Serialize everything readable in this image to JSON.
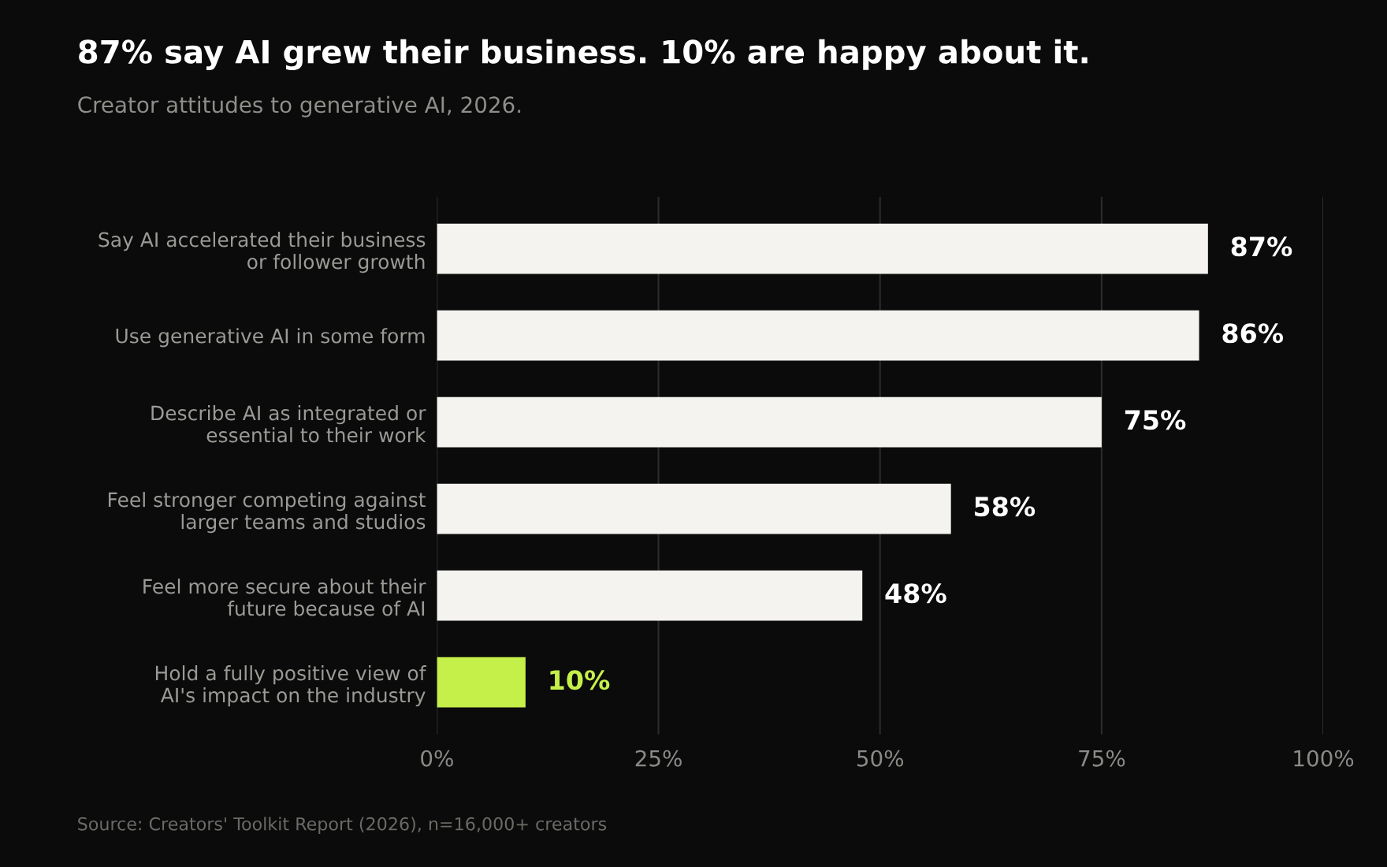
{
  "chart_data": {
    "type": "bar",
    "orientation": "horizontal",
    "title": "87% say AI grew their business. 10% are happy about it.",
    "subtitle": "Creator attitudes to generative AI, 2026.",
    "categories": [
      "Say AI accelerated their business\nor follower growth",
      "Use generative AI in some form",
      "Describe AI as integrated or\nessential to their work",
      "Feel stronger competing against\nlarger teams and studios",
      "Feel more secure about their\nfuture because of AI",
      "Hold a fully positive view of\nAI's impact on the industry"
    ],
    "values": [
      87,
      86,
      75,
      58,
      48,
      10
    ],
    "colors": [
      "#f4f3ef",
      "#f4f3ef",
      "#f4f3ef",
      "#f4f3ef",
      "#f4f3ef",
      "#c5f04a"
    ],
    "value_labels": [
      "87%",
      "86%",
      "75%",
      "58%",
      "48%",
      "10%"
    ],
    "xlim": [
      0,
      100
    ],
    "xticks": [
      {
        "value": 0,
        "label": "0%"
      },
      {
        "value": 25,
        "label": "25%"
      },
      {
        "value": 50,
        "label": "50%"
      },
      {
        "value": 75,
        "label": "75%"
      },
      {
        "value": 100,
        "label": "100%"
      }
    ],
    "grid": "x",
    "annotations": [
      "Source: Creators' Toolkit Report (2026), n=16,000+ creators"
    ]
  }
}
